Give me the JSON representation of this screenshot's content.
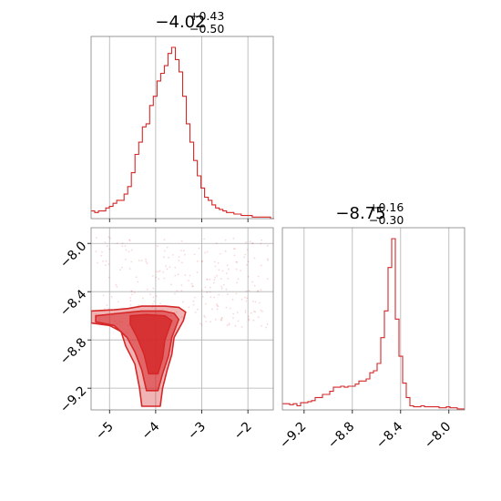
{
  "chart_data": {
    "type": "corner",
    "color": "#d62728",
    "parameters": [
      {
        "title": {
          "median": "−4.02",
          "upper": "+0.43",
          "lower": "−0.50"
        },
        "range": [
          -5.4,
          -1.45
        ],
        "ticks": [
          -5,
          -4,
          -3,
          -2
        ],
        "tick_labels": [
          "−5",
          "−4",
          "−3",
          "−2"
        ]
      },
      {
        "title": {
          "median": "−8.75",
          "upper": "+0.16",
          "lower": "−0.30"
        },
        "range": [
          -9.38,
          -7.87
        ],
        "ticks": [
          -9.2,
          -8.8,
          -8.4,
          -8.0
        ],
        "tick_labels": [
          "−9.2",
          "−8.8",
          "−8.4",
          "−8.0"
        ]
      }
    ],
    "histograms": [
      {
        "parameter": 0,
        "x_start": -5.4,
        "bin_width": 0.0794,
        "counts": [
          5,
          4,
          5,
          5,
          7,
          8,
          10,
          12,
          12,
          16,
          21,
          30,
          42,
          50,
          60,
          62,
          74,
          80,
          90,
          95,
          100,
          108,
          112,
          104,
          96,
          80,
          62,
          50,
          38,
          28,
          20,
          14,
          12,
          9,
          7,
          6,
          5,
          4,
          4,
          3,
          3,
          2,
          2,
          2,
          1,
          1,
          1,
          1,
          1,
          0
        ]
      },
      {
        "parameter": 1,
        "x_start": -9.38,
        "bin_width": 0.0302,
        "counts": [
          6,
          6,
          5,
          6,
          4,
          7,
          7,
          8,
          9,
          12,
          12,
          15,
          15,
          18,
          22,
          22,
          23,
          22,
          23,
          23,
          25,
          28,
          28,
          30,
          36,
          38,
          45,
          70,
          96,
          138,
          166,
          88,
          52,
          26,
          12,
          4,
          3,
          3,
          4,
          3,
          3,
          3,
          3,
          2,
          2,
          3,
          2,
          2,
          1,
          1
        ]
      }
    ],
    "contour_2d": {
      "x_parameter": 0,
      "y_parameter": 1,
      "y_ticks": [
        -8.0,
        -8.4,
        -8.8,
        -9.2
      ],
      "y_tick_labels": [
        "−8.0",
        "−8.4",
        "−8.8",
        "−9.2"
      ],
      "levels": [
        [
          [
            -5.4,
            -8.56
          ],
          [
            -4.9,
            -8.55
          ],
          [
            -4.6,
            -8.54
          ],
          [
            -4.3,
            -8.52
          ],
          [
            -3.8,
            -8.52
          ],
          [
            -3.5,
            -8.53
          ],
          [
            -3.35,
            -8.57
          ],
          [
            -3.4,
            -8.64
          ],
          [
            -3.6,
            -8.78
          ],
          [
            -3.65,
            -8.92
          ],
          [
            -3.75,
            -9.05
          ],
          [
            -3.85,
            -9.2
          ],
          [
            -3.9,
            -9.35
          ],
          [
            -4.3,
            -9.35
          ],
          [
            -4.35,
            -9.2
          ],
          [
            -4.45,
            -9.0
          ],
          [
            -4.65,
            -8.85
          ],
          [
            -4.75,
            -8.73
          ],
          [
            -5.0,
            -8.68
          ],
          [
            -5.4,
            -8.66
          ]
        ],
        [
          [
            -5.3,
            -8.6
          ],
          [
            -4.8,
            -8.58
          ],
          [
            -4.55,
            -8.57
          ],
          [
            -4.3,
            -8.56
          ],
          [
            -3.85,
            -8.56
          ],
          [
            -3.6,
            -8.58
          ],
          [
            -3.5,
            -8.63
          ],
          [
            -3.65,
            -8.78
          ],
          [
            -3.72,
            -8.93
          ],
          [
            -3.85,
            -9.08
          ],
          [
            -3.95,
            -9.22
          ],
          [
            -4.2,
            -9.22
          ],
          [
            -4.3,
            -9.05
          ],
          [
            -4.45,
            -8.9
          ],
          [
            -4.62,
            -8.78
          ],
          [
            -4.9,
            -8.68
          ],
          [
            -5.3,
            -8.65
          ]
        ],
        [
          [
            -4.55,
            -8.6
          ],
          [
            -4.2,
            -8.59
          ],
          [
            -3.8,
            -8.6
          ],
          [
            -3.65,
            -8.64
          ],
          [
            -3.8,
            -8.8
          ],
          [
            -3.85,
            -8.95
          ],
          [
            -3.95,
            -9.08
          ],
          [
            -4.15,
            -9.08
          ],
          [
            -4.25,
            -8.92
          ],
          [
            -4.4,
            -8.78
          ],
          [
            -4.55,
            -8.67
          ]
        ]
      ]
    }
  }
}
